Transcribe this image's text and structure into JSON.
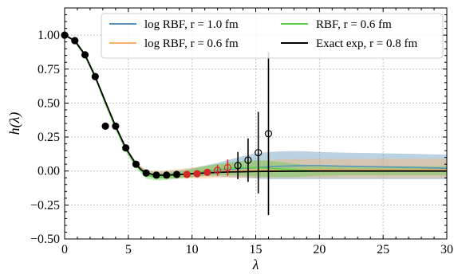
{
  "chart_data": {
    "type": "line",
    "xlabel": "λ",
    "ylabel": "h(λ)",
    "xlim": [
      0,
      30
    ],
    "ylim": [
      -0.5,
      1.2
    ],
    "xticks": [
      0,
      5,
      10,
      15,
      20,
      25,
      30
    ],
    "xtick_labels": [
      "0",
      "5",
      "10",
      "15",
      "20",
      "25",
      "30"
    ],
    "yticks": [
      -0.5,
      -0.25,
      0.0,
      0.25,
      0.5,
      0.75,
      1.0
    ],
    "ytick_labels": [
      "−0.50",
      "−0.25",
      "0.00",
      "0.25",
      "0.50",
      "0.75",
      "1.00"
    ],
    "grid": true,
    "legend_placement": "top-right",
    "legend": [
      {
        "label": "log RBF, r = 1.0 fm",
        "color": "#5b93bb"
      },
      {
        "label": "RBF, r = 0.6 fm",
        "color": "#5ecf4a"
      },
      {
        "label": "log RBF, r = 0.6 fm",
        "color": "#f6b26b"
      },
      {
        "label": "Exact exp, r = 0.8 fm",
        "color": "#000000"
      }
    ],
    "series": [
      {
        "name": "log RBF, r = 1.0 fm",
        "kind": "band",
        "color": "#5b93bb",
        "x": [
          0,
          0.8,
          1.6,
          2.4,
          3.2,
          4.0,
          4.8,
          5.6,
          6.4,
          7.2,
          8.0,
          9.0,
          10.0,
          11.0,
          12.0,
          13.0,
          14.0,
          15.0,
          16.0,
          17.0,
          18.0,
          19.0,
          20.0,
          22.0,
          25.0,
          28.0,
          30.0
        ],
        "center": [
          1.0,
          0.96,
          0.855,
          0.695,
          0.51,
          0.33,
          0.17,
          0.05,
          -0.015,
          -0.03,
          -0.03,
          -0.025,
          -0.02,
          -0.01,
          0.0,
          0.01,
          0.02,
          0.025,
          0.03,
          0.035,
          0.038,
          0.04,
          0.04,
          0.035,
          0.03,
          0.025,
          0.02
        ],
        "lower": [
          1.0,
          0.955,
          0.845,
          0.685,
          0.5,
          0.32,
          0.16,
          0.035,
          -0.035,
          -0.055,
          -0.055,
          -0.05,
          -0.045,
          -0.04,
          -0.04,
          -0.045,
          -0.05,
          -0.055,
          -0.06,
          -0.06,
          -0.06,
          -0.06,
          -0.06,
          -0.06,
          -0.06,
          -0.06,
          -0.06
        ],
        "upper": [
          1.0,
          0.965,
          0.865,
          0.705,
          0.52,
          0.34,
          0.18,
          0.065,
          0.005,
          -0.005,
          -0.002,
          0.005,
          0.02,
          0.04,
          0.06,
          0.085,
          0.11,
          0.13,
          0.14,
          0.145,
          0.148,
          0.145,
          0.14,
          0.135,
          0.13,
          0.125,
          0.12
        ]
      },
      {
        "name": "log RBF, r = 0.6 fm",
        "kind": "band",
        "color": "#f6b26b",
        "x": [
          0,
          0.8,
          1.6,
          2.4,
          3.2,
          4.0,
          4.8,
          5.6,
          6.4,
          7.2,
          8.0,
          9.0,
          10.0,
          11.0,
          12.0,
          13.0,
          14.0,
          15.0,
          16.0,
          17.0,
          18.0,
          19.0,
          20.0,
          22.0,
          25.0,
          28.0,
          30.0
        ],
        "center": [
          1.0,
          0.96,
          0.855,
          0.695,
          0.51,
          0.33,
          0.17,
          0.05,
          -0.015,
          -0.03,
          -0.03,
          -0.025,
          -0.02,
          -0.015,
          -0.005,
          0.0,
          0.005,
          0.01,
          0.01,
          0.012,
          0.012,
          0.012,
          0.012,
          0.01,
          0.01,
          0.01,
          0.01
        ],
        "lower": [
          1.0,
          0.955,
          0.845,
          0.685,
          0.5,
          0.32,
          0.16,
          0.035,
          -0.035,
          -0.055,
          -0.055,
          -0.055,
          -0.055,
          -0.055,
          -0.05,
          -0.05,
          -0.05,
          -0.05,
          -0.05,
          -0.05,
          -0.05,
          -0.05,
          -0.05,
          -0.05,
          -0.05,
          -0.05,
          -0.05
        ],
        "upper": [
          1.0,
          0.965,
          0.865,
          0.705,
          0.52,
          0.34,
          0.18,
          0.065,
          0.005,
          0.0,
          0.005,
          0.015,
          0.025,
          0.035,
          0.05,
          0.06,
          0.07,
          0.075,
          0.08,
          0.085,
          0.09,
          0.09,
          0.09,
          0.09,
          0.09,
          0.09,
          0.09
        ]
      },
      {
        "name": "RBF, r = 0.6 fm",
        "kind": "band",
        "color": "#5ecf4a",
        "x": [
          0,
          0.8,
          1.6,
          2.4,
          3.2,
          4.0,
          4.8,
          5.6,
          6.4,
          7.2,
          8.0,
          9.0,
          10.0,
          11.0,
          12.0,
          13.0,
          14.0,
          15.0,
          16.0,
          17.0,
          18.0,
          19.0,
          20.0,
          22.0,
          25.0,
          28.0,
          30.0
        ],
        "center": [
          1.0,
          0.955,
          0.85,
          0.69,
          0.5,
          0.32,
          0.16,
          0.04,
          -0.03,
          -0.045,
          -0.04,
          -0.03,
          -0.015,
          0.0,
          0.01,
          0.02,
          0.025,
          0.025,
          0.02,
          0.015,
          0.01,
          0.005,
          0.0,
          0.0,
          0.0,
          0.0,
          0.0
        ],
        "lower": [
          1.0,
          0.945,
          0.835,
          0.67,
          0.48,
          0.3,
          0.14,
          0.02,
          -0.055,
          -0.07,
          -0.065,
          -0.055,
          -0.045,
          -0.035,
          -0.03,
          -0.03,
          -0.035,
          -0.04,
          -0.045,
          -0.045,
          -0.045,
          -0.04,
          -0.035,
          -0.03,
          -0.03,
          -0.03,
          -0.03
        ],
        "upper": [
          1.0,
          0.965,
          0.865,
          0.71,
          0.52,
          0.34,
          0.18,
          0.06,
          -0.005,
          -0.02,
          -0.015,
          -0.005,
          0.015,
          0.035,
          0.05,
          0.065,
          0.075,
          0.08,
          0.075,
          0.065,
          0.055,
          0.045,
          0.04,
          0.035,
          0.035,
          0.035,
          0.035
        ]
      },
      {
        "name": "Exact exp, r = 0.8 fm",
        "kind": "line",
        "color": "#000000",
        "x": [
          0,
          0.8,
          1.6,
          2.4,
          3.2,
          4.0,
          4.8,
          5.6,
          6.0,
          6.4,
          7.2,
          8.0,
          9.0,
          10.0,
          11.0,
          12.0,
          13.0,
          14.0,
          15.0,
          16.0,
          18.0,
          20.0,
          25.0,
          30.0
        ],
        "y": [
          1.0,
          0.96,
          0.855,
          0.695,
          0.51,
          0.33,
          0.17,
          0.05,
          0.01,
          -0.015,
          -0.03,
          -0.03,
          -0.025,
          -0.02,
          -0.015,
          -0.01,
          -0.007,
          -0.005,
          -0.003,
          -0.002,
          -0.001,
          0.0,
          0.0,
          0.0
        ]
      },
      {
        "name": "black points",
        "kind": "scatter",
        "color": "#000000",
        "marker": "filled",
        "x": [
          0.0,
          0.8,
          1.6,
          2.4,
          3.2,
          4.0,
          4.8,
          5.6,
          6.4,
          7.2,
          8.0,
          8.8
        ],
        "y": [
          1.0,
          0.96,
          0.855,
          0.695,
          0.33,
          0.33,
          0.17,
          0.05,
          -0.015,
          -0.03,
          -0.03,
          -0.025
        ],
        "err": [
          0.002,
          0.003,
          0.004,
          0.005,
          0.006,
          0.006,
          0.006,
          0.006,
          0.006,
          0.007,
          0.007,
          0.008
        ]
      },
      {
        "name": "red filled points",
        "kind": "scatter",
        "color": "#d62728",
        "marker": "filled",
        "x": [
          9.6,
          10.4,
          11.2
        ],
        "y": [
          -0.025,
          -0.02,
          -0.01
        ],
        "err": [
          0.01,
          0.015,
          0.022
        ]
      },
      {
        "name": "red open points",
        "kind": "scatter",
        "color": "#d62728",
        "marker": "open",
        "x": [
          12.0,
          12.8
        ],
        "y": [
          0.005,
          0.025
        ],
        "err": [
          0.04,
          0.06
        ]
      },
      {
        "name": "black open points",
        "kind": "scatter",
        "color": "#000000",
        "marker": "open",
        "x": [
          13.6,
          14.4,
          15.2,
          16.0
        ],
        "y": [
          0.04,
          0.08,
          0.135,
          0.275
        ],
        "err": [
          0.1,
          0.16,
          0.3,
          0.6
        ]
      }
    ]
  }
}
